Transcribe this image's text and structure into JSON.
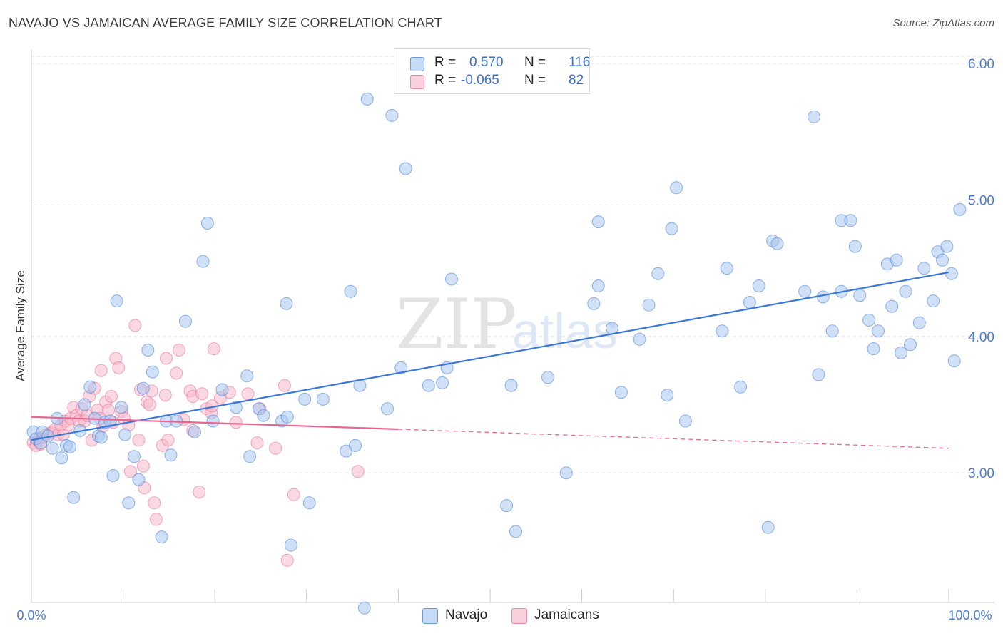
{
  "title": "NAVAJO VS JAMAICAN AVERAGE FAMILY SIZE CORRELATION CHART",
  "source": "Source: ZipAtlas.com",
  "watermark": {
    "zip": "ZIP",
    "atlas": "atlas"
  },
  "legend": {
    "rows": [
      {
        "r_label": "R =",
        "r_value": "0.570",
        "n_label": "N =",
        "n_value": "116",
        "color": "#a8c6f0"
      },
      {
        "r_label": "R =",
        "r_value": "-0.065",
        "n_label": "N =",
        "n_value": "82",
        "color": "#f5b9cb"
      }
    ]
  },
  "bottom_legend": [
    {
      "label": "Navajo",
      "color": "#a8c6f0"
    },
    {
      "label": "Jamaicans",
      "color": "#f5b9cb"
    }
  ],
  "chart_data": {
    "type": "scatter",
    "title": "NAVAJO VS JAMAICAN AVERAGE FAMILY SIZE CORRELATION CHART",
    "xlabel": "",
    "ylabel": "Average Family Size",
    "x_tick_labels": [
      "0.0%",
      "100.0%"
    ],
    "y_tick_labels": [
      "3.00",
      "4.00",
      "5.00",
      "6.00"
    ],
    "y_ticks": [
      3.0,
      4.0,
      5.0,
      6.0
    ],
    "xlim": [
      0,
      100
    ],
    "ylim": [
      2.05,
      6.1
    ],
    "grid": true,
    "legend_position": "top-center",
    "series": [
      {
        "name": "Navajo",
        "color": "#3a78d8",
        "fill": "#a8c6f0",
        "trend": {
          "x0": 0,
          "y0": 3.24,
          "x1": 100,
          "y1": 4.47
        },
        "points": [
          [
            0.2,
            3.3
          ],
          [
            0.5,
            3.25
          ],
          [
            1,
            3.22
          ],
          [
            1.2,
            3.3
          ],
          [
            1.8,
            3.27
          ],
          [
            2.3,
            3.18
          ],
          [
            2.8,
            3.4
          ],
          [
            3.3,
            3.11
          ],
          [
            3.8,
            3.2
          ],
          [
            4.2,
            3.19
          ],
          [
            4.6,
            2.82
          ],
          [
            5.3,
            3.31
          ],
          [
            5.8,
            3.5
          ],
          [
            6.4,
            3.63
          ],
          [
            6.9,
            3.4
          ],
          [
            7.3,
            3.27
          ],
          [
            7.6,
            3.26
          ],
          [
            8,
            3.37
          ],
          [
            8.6,
            3.38
          ],
          [
            8.9,
            2.98
          ],
          [
            9.3,
            4.26
          ],
          [
            9.8,
            3.48
          ],
          [
            10.2,
            3.28
          ],
          [
            10.6,
            2.78
          ],
          [
            11.2,
            3.12
          ],
          [
            11.7,
            2.95
          ],
          [
            12.2,
            3.62
          ],
          [
            12.7,
            3.9
          ],
          [
            13.2,
            3.74
          ],
          [
            14.2,
            2.53
          ],
          [
            14.7,
            3.38
          ],
          [
            15.2,
            3.13
          ],
          [
            15.8,
            3.38
          ],
          [
            16.8,
            4.11
          ],
          [
            17.8,
            3.3
          ],
          [
            18.7,
            4.55
          ],
          [
            19.2,
            4.83
          ],
          [
            19.8,
            3.38
          ],
          [
            20.8,
            3.61
          ],
          [
            22.3,
            3.48
          ],
          [
            23.8,
            3.12
          ],
          [
            23.5,
            3.71
          ],
          [
            24.8,
            3.47
          ],
          [
            25.3,
            3.42
          ],
          [
            27.3,
            3.38
          ],
          [
            27.8,
            4.24
          ],
          [
            27.9,
            3.41
          ],
          [
            28.3,
            2.47
          ],
          [
            29.8,
            3.54
          ],
          [
            30.3,
            2.78
          ],
          [
            31.8,
            3.54
          ],
          [
            34.3,
            3.16
          ],
          [
            35.3,
            3.2
          ],
          [
            34.8,
            4.33
          ],
          [
            35.8,
            3.64
          ],
          [
            36.3,
            2.01
          ],
          [
            36.6,
            5.74
          ],
          [
            38.8,
            3.47
          ],
          [
            39.3,
            5.62
          ],
          [
            40.3,
            3.77
          ],
          [
            40.8,
            5.23
          ],
          [
            43.3,
            3.64
          ],
          [
            44.8,
            3.66
          ],
          [
            45.3,
            3.77
          ],
          [
            45.8,
            4.42
          ],
          [
            51.8,
            2.76
          ],
          [
            52.3,
            3.64
          ],
          [
            52.8,
            2.57
          ],
          [
            56.3,
            3.7
          ],
          [
            58.3,
            3.0
          ],
          [
            61.3,
            4.24
          ],
          [
            61.8,
            4.37
          ],
          [
            61.8,
            4.84
          ],
          [
            63.3,
            4.06
          ],
          [
            64.3,
            3.59
          ],
          [
            66.3,
            3.98
          ],
          [
            67.3,
            4.23
          ],
          [
            68.3,
            4.46
          ],
          [
            69.3,
            3.57
          ],
          [
            69.8,
            4.79
          ],
          [
            70.3,
            5.09
          ],
          [
            71.3,
            3.38
          ],
          [
            75.3,
            4.04
          ],
          [
            75.8,
            4.5
          ],
          [
            77.3,
            3.63
          ],
          [
            78.3,
            4.25
          ],
          [
            79.3,
            4.37
          ],
          [
            80.3,
            2.6
          ],
          [
            80.8,
            4.7
          ],
          [
            81.3,
            4.68
          ],
          [
            84.3,
            4.33
          ],
          [
            85.3,
            5.61
          ],
          [
            85.8,
            3.72
          ],
          [
            86.3,
            4.29
          ],
          [
            87.3,
            4.04
          ],
          [
            88.3,
            4.85
          ],
          [
            88.3,
            4.33
          ],
          [
            89.3,
            4.85
          ],
          [
            89.8,
            4.66
          ],
          [
            90.3,
            4.3
          ],
          [
            91.3,
            4.12
          ],
          [
            91.8,
            3.91
          ],
          [
            92.3,
            4.04
          ],
          [
            93.3,
            4.53
          ],
          [
            93.8,
            4.22
          ],
          [
            94.3,
            4.56
          ],
          [
            94.8,
            3.88
          ],
          [
            95.3,
            4.33
          ],
          [
            95.8,
            3.94
          ],
          [
            96.8,
            4.1
          ],
          [
            97.3,
            4.5
          ],
          [
            98.3,
            4.26
          ],
          [
            98.8,
            4.62
          ],
          [
            99.3,
            4.56
          ],
          [
            99.8,
            4.66
          ],
          [
            100.3,
            4.46
          ],
          [
            100.6,
            3.82
          ],
          [
            101.2,
            4.93
          ]
        ]
      },
      {
        "name": "Jamaicans",
        "color": "#e8658f",
        "fill": "#f5b9cb",
        "trend": {
          "x0": 0,
          "y0": 3.41,
          "x1": 40,
          "y1": 3.32,
          "dashed_x1": 100,
          "dashed_y1": 3.18
        },
        "points": [
          [
            0.2,
            3.22
          ],
          [
            0.5,
            3.2
          ],
          [
            0.7,
            3.24
          ],
          [
            1,
            3.21
          ],
          [
            1.2,
            3.26
          ],
          [
            1.6,
            3.28
          ],
          [
            2,
            3.29
          ],
          [
            2.3,
            3.3
          ],
          [
            2.6,
            3.32
          ],
          [
            2.9,
            3.28
          ],
          [
            3.2,
            3.35
          ],
          [
            3.5,
            3.28
          ],
          [
            3.7,
            3.38
          ],
          [
            4,
            3.35
          ],
          [
            4.3,
            3.4
          ],
          [
            4.6,
            3.48
          ],
          [
            4.9,
            3.42
          ],
          [
            5.2,
            3.38
          ],
          [
            5.5,
            3.47
          ],
          [
            5.8,
            3.38
          ],
          [
            6.1,
            3.42
          ],
          [
            6.3,
            3.56
          ],
          [
            6.6,
            3.24
          ],
          [
            6.9,
            3.62
          ],
          [
            7.2,
            3.46
          ],
          [
            7.5,
            3.4
          ],
          [
            7.8,
            3.34
          ],
          [
            7.6,
            3.75
          ],
          [
            8.1,
            3.52
          ],
          [
            8.4,
            3.46
          ],
          [
            8.7,
            3.56
          ],
          [
            8.9,
            3.37
          ],
          [
            9.2,
            3.84
          ],
          [
            9.5,
            3.77
          ],
          [
            9.8,
            3.45
          ],
          [
            10.1,
            3.4
          ],
          [
            10.6,
            3.35
          ],
          [
            10.8,
            3.01
          ],
          [
            11.3,
            4.08
          ],
          [
            11.7,
            3.24
          ],
          [
            11.9,
            3.61
          ],
          [
            12.2,
            3.05
          ],
          [
            12.3,
            2.89
          ],
          [
            12.6,
            3.52
          ],
          [
            12.9,
            3.5
          ],
          [
            13.1,
            3.6
          ],
          [
            13.4,
            2.78
          ],
          [
            13.6,
            2.66
          ],
          [
            14.3,
            3.2
          ],
          [
            14.6,
            3.57
          ],
          [
            14.9,
            3.24
          ],
          [
            14.7,
            3.84
          ],
          [
            15.8,
            3.73
          ],
          [
            16.1,
            3.9
          ],
          [
            16.6,
            3.39
          ],
          [
            17.3,
            3.6
          ],
          [
            17.6,
            3.56
          ],
          [
            17.6,
            3.31
          ],
          [
            18.3,
            2.86
          ],
          [
            18.6,
            3.58
          ],
          [
            19.1,
            3.47
          ],
          [
            19.6,
            3.44
          ],
          [
            19.7,
            3.49
          ],
          [
            19.9,
            3.91
          ],
          [
            20.6,
            3.55
          ],
          [
            21.6,
            3.59
          ],
          [
            22.3,
            3.37
          ],
          [
            23.6,
            3.58
          ],
          [
            24.6,
            3.22
          ],
          [
            24.9,
            3.47
          ],
          [
            26.6,
            3.18
          ],
          [
            27.6,
            3.64
          ],
          [
            27.9,
            2.36
          ],
          [
            28.6,
            2.84
          ],
          [
            35.6,
            3.01
          ]
        ]
      }
    ]
  }
}
